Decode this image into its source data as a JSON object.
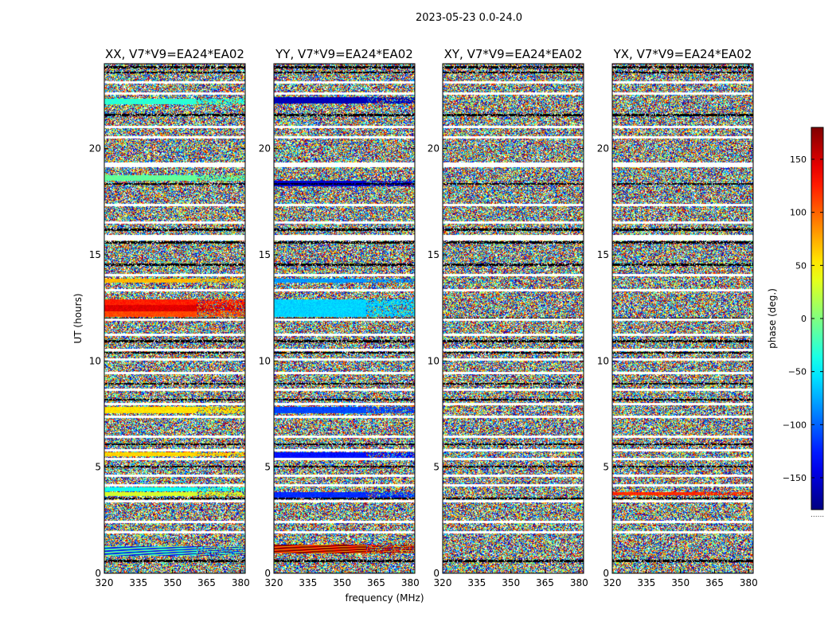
{
  "chart_data": {
    "type": "heatmap",
    "title": "2023-05-23 0.0-24.0",
    "xlabel": "frequency (MHz)",
    "ylabel": "UT (hours)",
    "xlim": [
      320,
      382
    ],
    "ylim": [
      0,
      24
    ],
    "x_ticks": [
      "320",
      "335",
      "350",
      "365",
      "380"
    ],
    "x_tick_values": [
      320,
      335,
      350,
      365,
      380
    ],
    "y_ticks": [
      "0",
      "5",
      "10",
      "15",
      "20"
    ],
    "y_tick_values": [
      0,
      5,
      10,
      15,
      20
    ],
    "colormap": "jet",
    "colorbar": {
      "label": "phase (deg.)",
      "range": [
        -180,
        180
      ],
      "ticks": [
        "−150",
        "−100",
        "−50",
        "0",
        "50",
        "100",
        "150"
      ],
      "tick_values": [
        -150,
        -100,
        -50,
        0,
        50,
        100,
        150
      ],
      "footer": "......"
    },
    "panels": [
      {
        "title": "XX, V7*V9=EA24*EA02",
        "bands": [
          {
            "t0": 0.85,
            "t1": 1.3,
            "phase": -70,
            "fan": true
          },
          {
            "t0": 3.65,
            "t1": 3.85,
            "phase": 30
          },
          {
            "t0": 3.9,
            "t1": 4.05,
            "phase": -40
          },
          {
            "t0": 5.55,
            "t1": 5.7,
            "phase": 60
          },
          {
            "t0": 7.55,
            "t1": 7.85,
            "phase": 55
          },
          {
            "t0": 12.1,
            "t1": 12.35,
            "phase": 110
          },
          {
            "t0": 12.35,
            "t1": 12.65,
            "phase": 145
          },
          {
            "t0": 12.65,
            "t1": 12.9,
            "phase": 125
          },
          {
            "t0": 13.7,
            "t1": 13.9,
            "phase": 70
          },
          {
            "t0": 18.5,
            "t1": 18.75,
            "phase": -10
          },
          {
            "t0": 22.1,
            "t1": 22.35,
            "phase": -30
          }
        ]
      },
      {
        "title": "YY, V7*V9=EA24*EA02",
        "bands": [
          {
            "t0": 0.95,
            "t1": 1.35,
            "phase": 165,
            "fan": true
          },
          {
            "t0": 3.6,
            "t1": 3.85,
            "phase": -120
          },
          {
            "t0": 5.45,
            "t1": 5.7,
            "phase": -130
          },
          {
            "t0": 7.55,
            "t1": 7.85,
            "phase": -110
          },
          {
            "t0": 12.1,
            "t1": 12.9,
            "phase": -60
          },
          {
            "t0": 13.7,
            "t1": 13.9,
            "phase": -80
          },
          {
            "t0": 18.25,
            "t1": 18.5,
            "phase": -150
          },
          {
            "t0": 22.15,
            "t1": 22.45,
            "phase": -160
          }
        ]
      },
      {
        "title": "XY, V7*V9=EA24*EA02",
        "bands": []
      },
      {
        "title": "YX, V7*V9=EA24*EA02",
        "bands": [
          {
            "t0": 3.7,
            "t1": 3.85,
            "phase": 120
          }
        ]
      }
    ],
    "flagged_hours": [
      [
        1.9,
        2.0
      ],
      [
        2.4,
        2.5
      ],
      [
        3.35,
        3.45
      ],
      [
        4.1,
        4.2
      ],
      [
        4.55,
        4.65
      ],
      [
        5.35,
        5.45
      ],
      [
        5.75,
        5.85
      ],
      [
        6.4,
        6.5
      ],
      [
        7.35,
        7.45
      ],
      [
        7.95,
        8.05
      ],
      [
        8.6,
        8.7
      ],
      [
        9.4,
        9.5
      ],
      [
        10.05,
        10.15
      ],
      [
        10.5,
        10.6
      ],
      [
        11.2,
        11.3
      ],
      [
        11.9,
        12.0
      ],
      [
        13.3,
        13.4
      ],
      [
        14.0,
        14.1
      ],
      [
        15.7,
        15.95
      ],
      [
        16.5,
        16.6
      ],
      [
        17.3,
        17.4
      ],
      [
        19.15,
        19.35
      ],
      [
        20.5,
        20.6
      ],
      [
        21.0,
        21.1
      ],
      [
        22.55,
        22.65
      ],
      [
        23.1,
        23.2
      ]
    ],
    "dark_hours": [
      0.6,
      3.55,
      5.05,
      6.1,
      8.2,
      8.95,
      10.4,
      10.95,
      12.0,
      14.55,
      15.6,
      16.2,
      18.35,
      20.55,
      21.6,
      23.6,
      23.85
    ]
  }
}
